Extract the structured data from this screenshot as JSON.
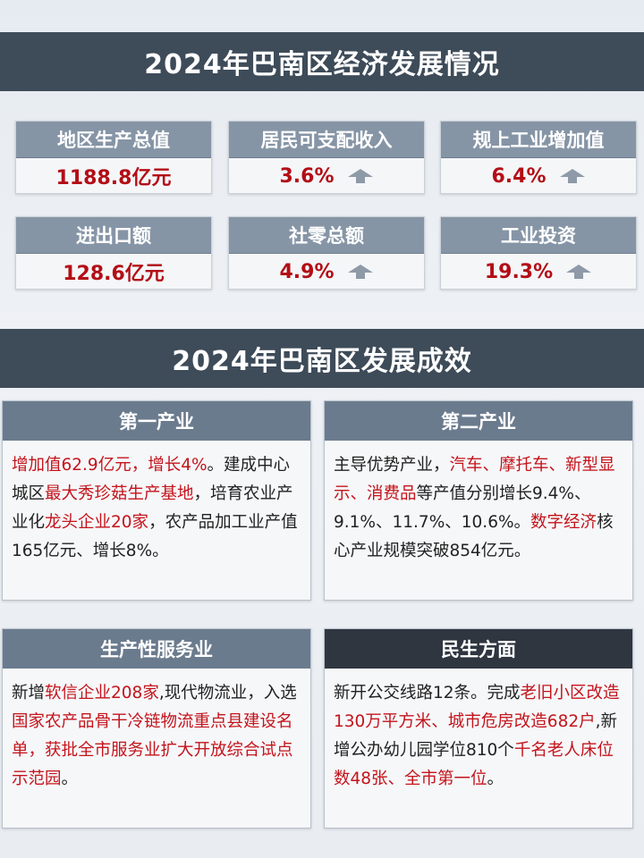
{
  "section1": {
    "title": "2024年巴南区经济发展情况"
  },
  "stats": [
    {
      "label": "地区生产总值",
      "value": "1188.8亿元",
      "arrow": false
    },
    {
      "label": "居民可支配收入",
      "value": "3.6%",
      "arrow": true
    },
    {
      "label": "规上工业增加值",
      "value": "6.4%",
      "arrow": true
    },
    {
      "label": "进出口额",
      "value": "128.6亿元",
      "arrow": false
    },
    {
      "label": "社零总额",
      "value": "4.9%",
      "arrow": true
    },
    {
      "label": "工业投资",
      "value": "19.3%",
      "arrow": true
    }
  ],
  "section2": {
    "title": "2024年巴南区发展成效"
  },
  "cards": {
    "primary": {
      "title": "第一产业",
      "segments": [
        {
          "t": "增加值62.9亿元，增长4%",
          "hl": true
        },
        {
          "t": "。建成中心城区",
          "hl": false
        },
        {
          "t": "最大秀珍菇生产基地",
          "hl": true
        },
        {
          "t": "，培育农业产业化",
          "hl": false
        },
        {
          "t": "龙头企业20家",
          "hl": true
        },
        {
          "t": "，农产品加工业产值165亿元、增长8%。",
          "hl": false
        }
      ]
    },
    "secondary": {
      "title": "第二产业",
      "segments": [
        {
          "t": "主导优势产业，",
          "hl": false
        },
        {
          "t": "汽车、摩托车、新型显示、消费品",
          "hl": true
        },
        {
          "t": "等产值分别增长9.4%、9.1%、11.7%、10.6%。",
          "hl": false
        },
        {
          "t": "数字经济",
          "hl": true
        },
        {
          "t": "核心产业规模突破854亿元。",
          "hl": false
        }
      ]
    },
    "services": {
      "title": "生产性服务业",
      "segments": [
        {
          "t": "新增",
          "hl": false
        },
        {
          "t": "软信企业208家",
          "hl": true
        },
        {
          "t": ",现代物流业，入选",
          "hl": false
        },
        {
          "t": "国家农产品骨干冷链物流重点县建设名单，获批全市服务业扩大开放综合试点示范园",
          "hl": true
        },
        {
          "t": "。",
          "hl": false
        }
      ]
    },
    "livelihood": {
      "title": "民生方面",
      "segments": [
        {
          "t": "新开公交线路12条。完成",
          "hl": false
        },
        {
          "t": "老旧小区改造130万平方米、城市危房改造682户",
          "hl": true
        },
        {
          "t": ",新增公办幼儿园学位810个",
          "hl": false
        },
        {
          "t": "千名老人床位数48张、全市第一位",
          "hl": true
        },
        {
          "t": "。",
          "hl": false
        }
      ]
    }
  },
  "colors": {
    "banner": "#3e4b59",
    "highlight": "#c4141c",
    "label_bg": "#8695a6"
  },
  "icons": {
    "up_arrow": "up-arrow-icon"
  }
}
